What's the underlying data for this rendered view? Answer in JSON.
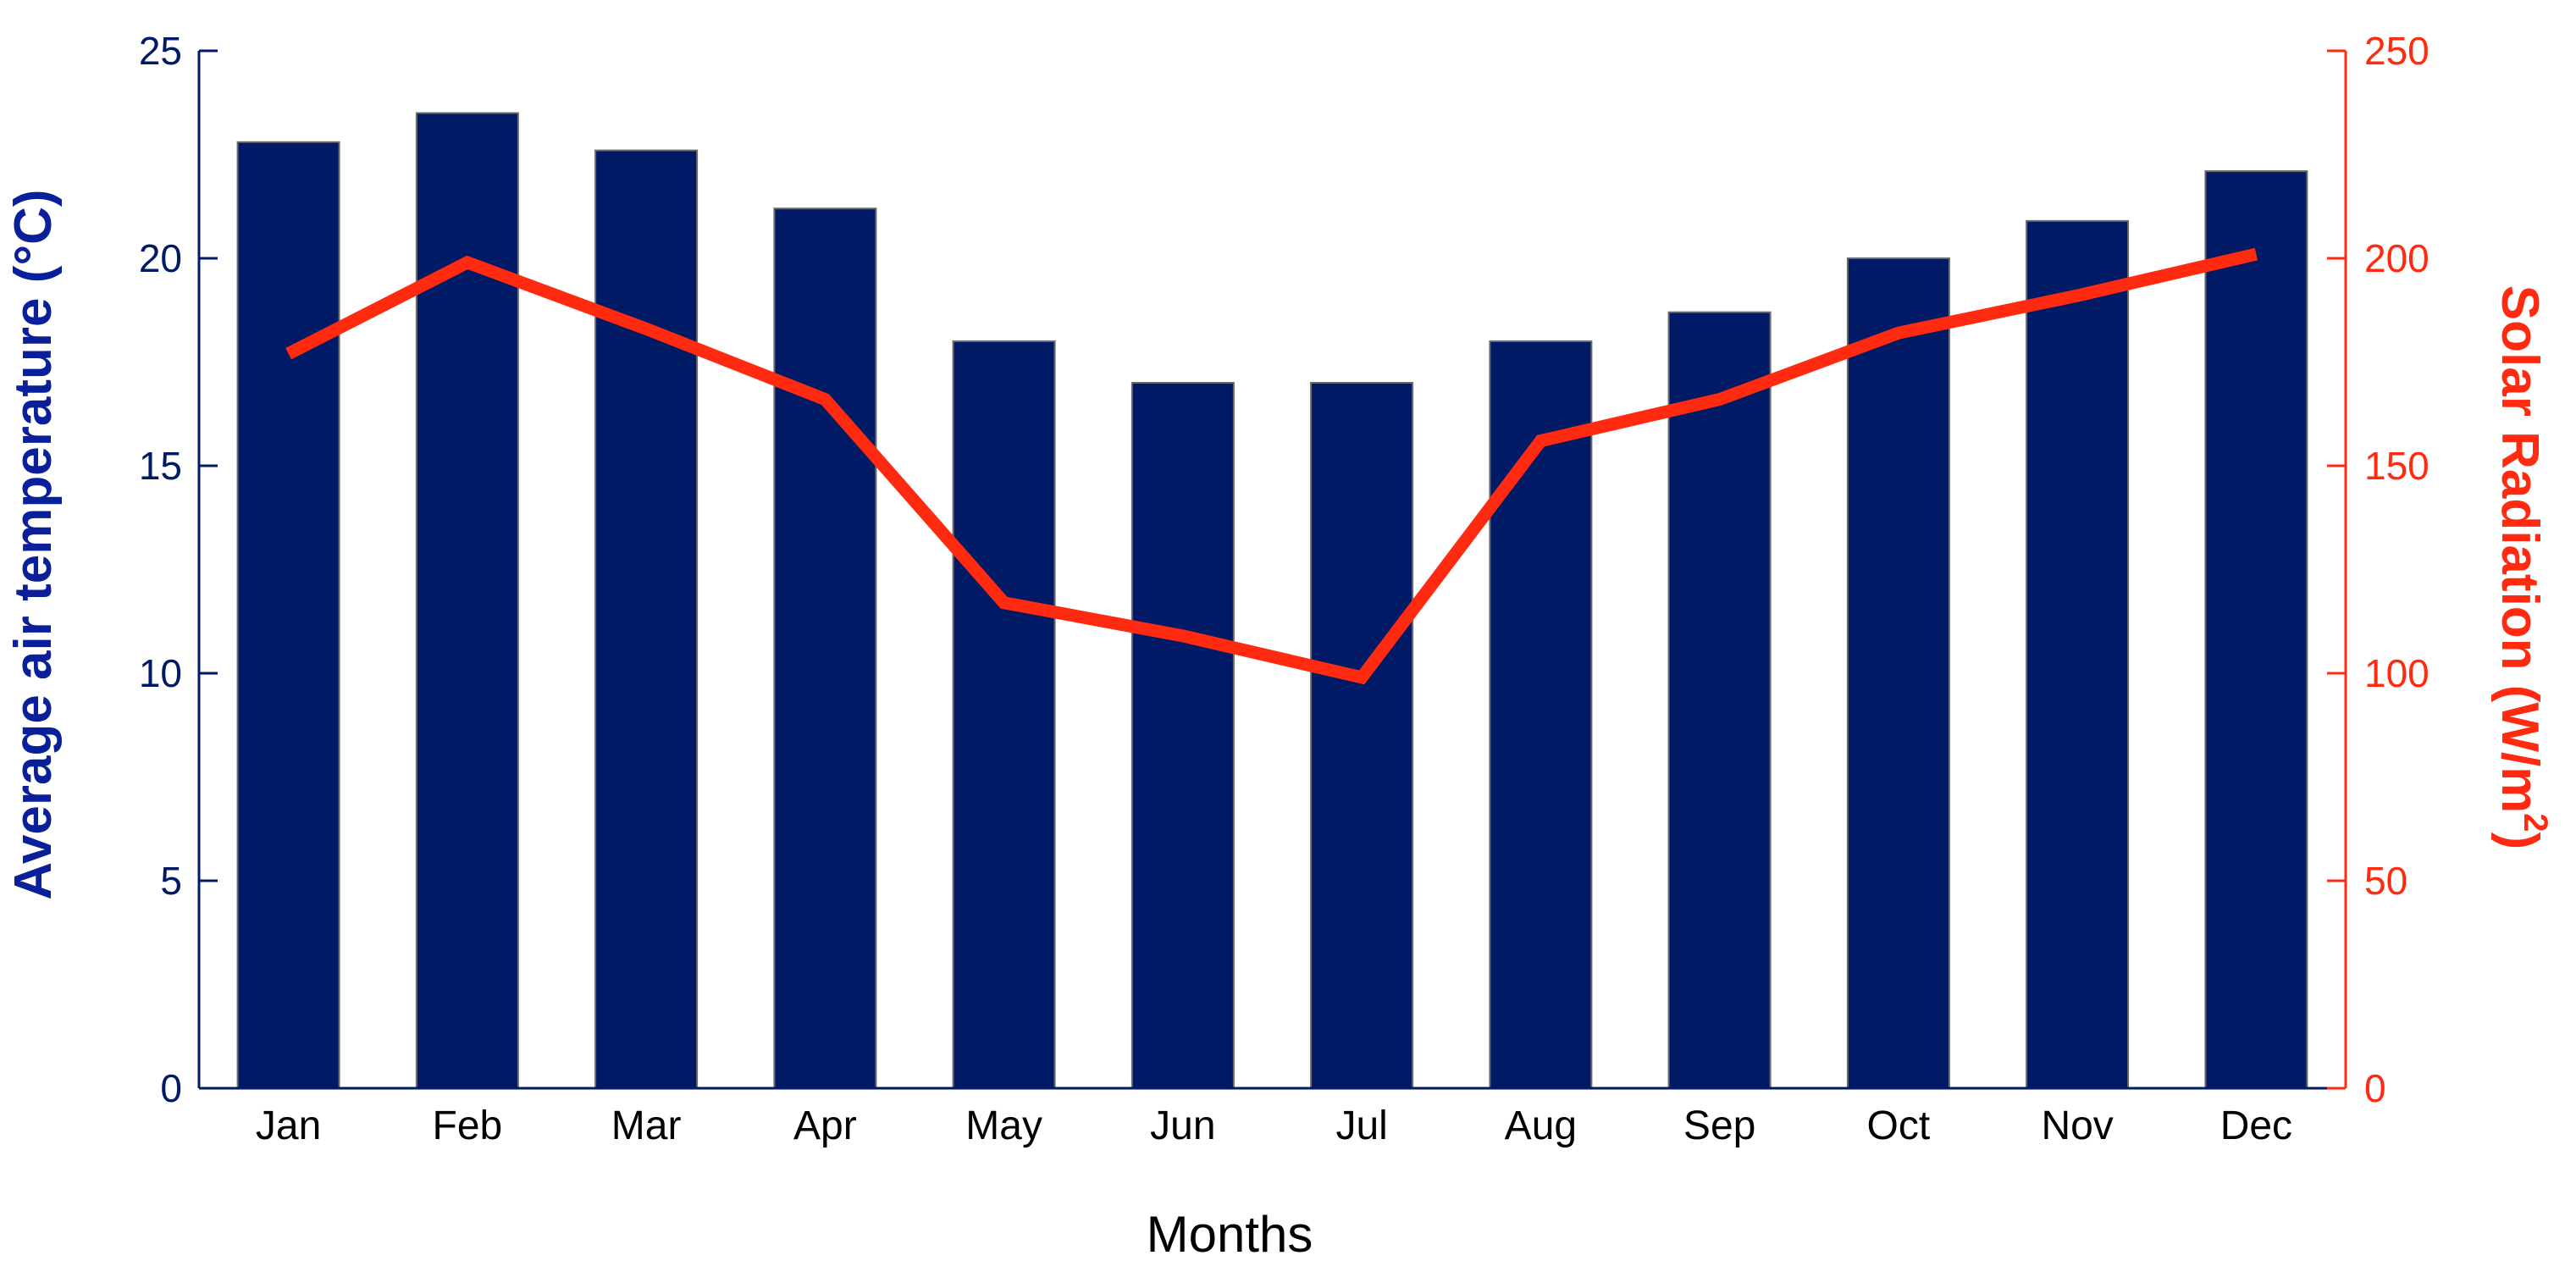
{
  "chart_data": {
    "type": "bar",
    "title": "",
    "xlabel": "Months",
    "categories": [
      "Jan",
      "Feb",
      "Mar",
      "Apr",
      "May",
      "Jun",
      "Jul",
      "Aug",
      "Sep",
      "Oct",
      "Nov",
      "Dec"
    ],
    "series": [
      {
        "name": "",
        "type": "bar",
        "axis": "left",
        "color": "#001a66",
        "values": [
          22.8,
          23.5,
          22.6,
          21.2,
          18.0,
          17.0,
          17.0,
          18.0,
          18.7,
          20.0,
          20.9,
          22.1
        ]
      },
      {
        "name": "",
        "type": "line",
        "axis": "right",
        "color": "#ff2a10",
        "values": [
          177,
          199,
          183,
          166,
          117,
          109,
          99,
          156,
          166,
          182,
          191,
          201
        ]
      }
    ],
    "y_left": {
      "label": "Average air temperature (°C)",
      "ylim": [
        0,
        25
      ],
      "ticks": [
        "0",
        "5",
        "10",
        "15",
        "20",
        "25"
      ],
      "color": "#0a1f9a"
    },
    "y_right": {
      "label": "Solar Radiation (W/m",
      "label_superscript": "2",
      "label_suffix": ")",
      "ylim": [
        0,
        250
      ],
      "ticks": [
        "0",
        "50",
        "100",
        "150",
        "200",
        "250"
      ],
      "color": "#ff2a10"
    },
    "grid": false,
    "legend": "none"
  }
}
